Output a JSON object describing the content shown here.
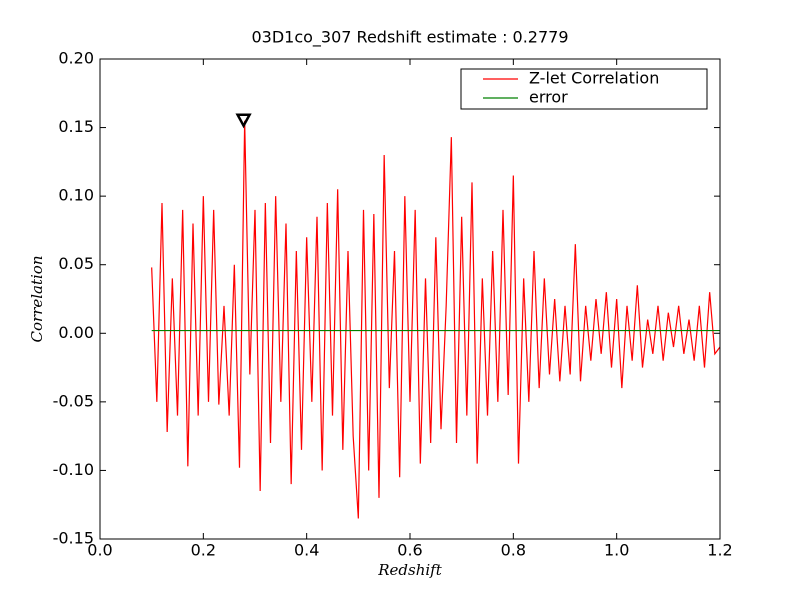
{
  "chart_data": {
    "type": "line",
    "title": "03D1co_307 Redshift estimate : 0.2779",
    "x_label": "Redshift",
    "y_label": "Correlation",
    "xlim": [
      0.0,
      1.2
    ],
    "ylim": [
      -0.15,
      0.2
    ],
    "xticks": [
      {
        "value": 0.0,
        "label": "0.0"
      },
      {
        "value": 0.2,
        "label": "0.2"
      },
      {
        "value": 0.4,
        "label": "0.4"
      },
      {
        "value": 0.6,
        "label": "0.6"
      },
      {
        "value": 0.8,
        "label": "0.8"
      },
      {
        "value": 1.0,
        "label": "1.0"
      },
      {
        "value": 1.2,
        "label": "1.2"
      }
    ],
    "yticks": [
      {
        "value": -0.15,
        "label": "-0.15"
      },
      {
        "value": -0.1,
        "label": "-0.10"
      },
      {
        "value": -0.05,
        "label": "-0.05"
      },
      {
        "value": 0.0,
        "label": "0.00"
      },
      {
        "value": 0.05,
        "label": "0.05"
      },
      {
        "value": 0.1,
        "label": "0.10"
      },
      {
        "value": 0.15,
        "label": "0.15"
      },
      {
        "value": 0.2,
        "label": "0.20"
      }
    ],
    "legend": "upper right",
    "marker": {
      "x": 0.2779,
      "y": 0.155
    },
    "series": [
      {
        "name": "Z-let Correlation",
        "color": "#ff0000",
        "x": [
          0.1,
          0.11,
          0.12,
          0.13,
          0.14,
          0.15,
          0.16,
          0.17,
          0.18,
          0.19,
          0.2,
          0.21,
          0.22,
          0.23,
          0.24,
          0.25,
          0.26,
          0.27,
          0.28,
          0.29,
          0.3,
          0.31,
          0.32,
          0.33,
          0.34,
          0.35,
          0.36,
          0.37,
          0.38,
          0.39,
          0.4,
          0.41,
          0.42,
          0.43,
          0.44,
          0.45,
          0.46,
          0.47,
          0.48,
          0.49,
          0.5,
          0.51,
          0.52,
          0.53,
          0.54,
          0.55,
          0.56,
          0.57,
          0.58,
          0.59,
          0.6,
          0.61,
          0.62,
          0.63,
          0.64,
          0.65,
          0.66,
          0.67,
          0.68,
          0.69,
          0.7,
          0.71,
          0.72,
          0.73,
          0.74,
          0.75,
          0.76,
          0.77,
          0.78,
          0.79,
          0.8,
          0.81,
          0.82,
          0.83,
          0.84,
          0.85,
          0.86,
          0.87,
          0.88,
          0.89,
          0.9,
          0.91,
          0.92,
          0.93,
          0.94,
          0.95,
          0.96,
          0.97,
          0.98,
          0.99,
          1.0,
          1.01,
          1.02,
          1.03,
          1.04,
          1.05,
          1.06,
          1.07,
          1.08,
          1.09,
          1.1,
          1.11,
          1.12,
          1.13,
          1.14,
          1.15,
          1.16,
          1.17,
          1.18,
          1.19,
          1.2
        ],
        "values": [
          0.048,
          -0.05,
          0.095,
          -0.072,
          0.04,
          -0.06,
          0.09,
          -0.097,
          0.08,
          -0.06,
          0.1,
          -0.05,
          0.09,
          -0.052,
          0.02,
          -0.06,
          0.05,
          -0.098,
          0.155,
          -0.03,
          0.09,
          -0.115,
          0.095,
          -0.08,
          0.1,
          -0.05,
          0.08,
          -0.11,
          0.06,
          -0.085,
          0.07,
          -0.05,
          0.085,
          -0.1,
          0.095,
          -0.06,
          0.105,
          -0.085,
          0.06,
          -0.075,
          -0.135,
          0.09,
          -0.1,
          0.087,
          -0.12,
          0.13,
          -0.04,
          0.06,
          -0.105,
          0.1,
          -0.05,
          0.09,
          -0.095,
          0.04,
          -0.08,
          0.07,
          -0.07,
          0.02,
          0.143,
          -0.08,
          0.085,
          -0.06,
          0.11,
          -0.095,
          0.04,
          -0.06,
          0.06,
          -0.05,
          0.09,
          -0.045,
          0.115,
          -0.095,
          0.04,
          -0.05,
          0.06,
          -0.04,
          0.04,
          -0.03,
          0.025,
          -0.035,
          0.02,
          -0.03,
          0.065,
          -0.035,
          0.02,
          -0.02,
          0.025,
          -0.015,
          0.03,
          -0.025,
          0.025,
          -0.04,
          0.02,
          -0.02,
          0.035,
          -0.025,
          0.01,
          -0.015,
          0.02,
          -0.02,
          0.015,
          -0.01,
          0.02,
          -0.015,
          0.01,
          -0.02,
          0.02,
          -0.025,
          0.03,
          -0.015,
          -0.01
        ]
      },
      {
        "name": "error",
        "color": "#008000",
        "x": [
          0.1,
          1.2
        ],
        "values": [
          0.002,
          0.002
        ]
      }
    ]
  }
}
